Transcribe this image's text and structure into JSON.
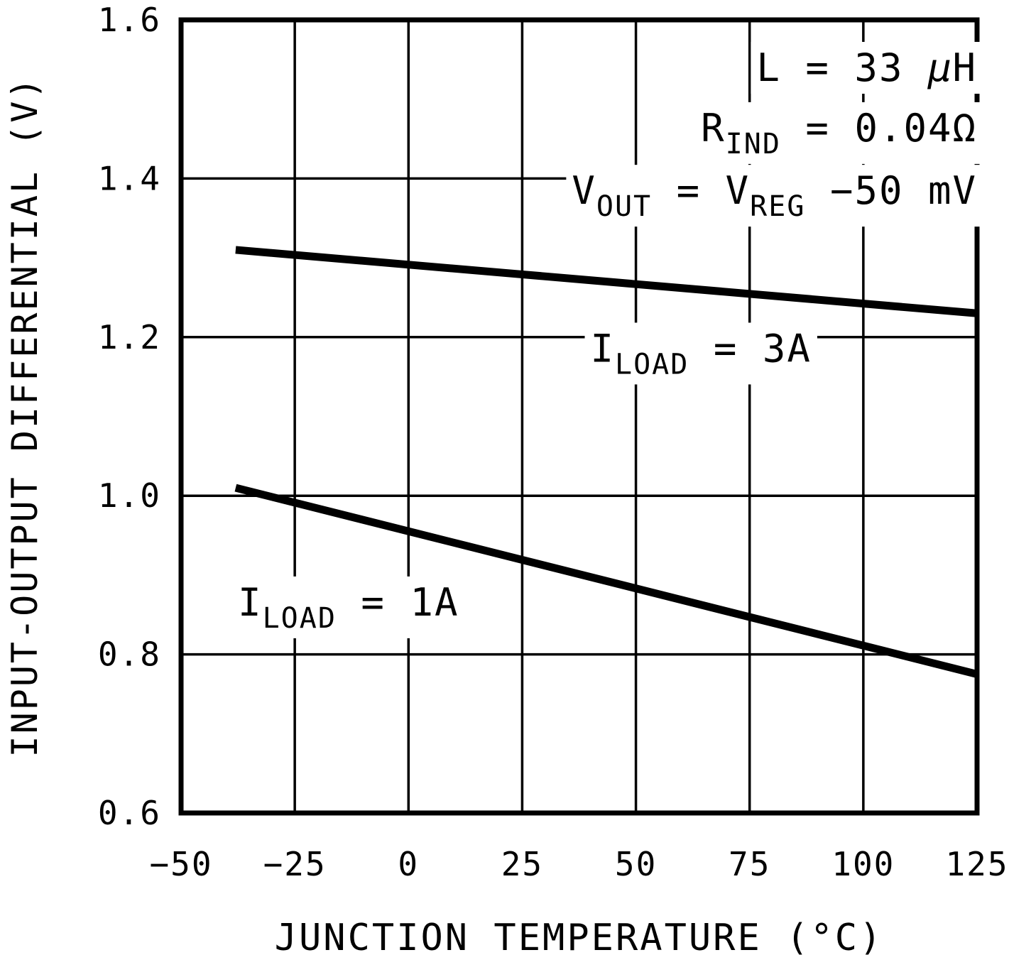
{
  "chart_data": {
    "type": "line",
    "title": "",
    "xlabel": "JUNCTION TEMPERATURE (°C)",
    "ylabel": "INPUT-OUTPUT DIFFERENTIAL (V)",
    "xlim": [
      -50,
      125
    ],
    "ylim": [
      0.6,
      1.6
    ],
    "x_ticks": [
      -50,
      -25,
      0,
      25,
      50,
      75,
      100,
      125
    ],
    "x_tick_labels": [
      "−50",
      "−25",
      "0",
      "25",
      "50",
      "75",
      "100",
      "125"
    ],
    "y_ticks": [
      0.6,
      0.8,
      1.0,
      1.2,
      1.4,
      1.6
    ],
    "y_tick_labels": [
      "0.6",
      "0.8",
      "1.0",
      "1.2",
      "1.4",
      "1.6"
    ],
    "grid": true,
    "legend": "none",
    "series": [
      {
        "id": "iload-3a",
        "name": "ILOAD = 3A",
        "x": [
          -38,
          125
        ],
        "y": [
          1.31,
          1.23
        ]
      },
      {
        "id": "iload-1a",
        "name": "ILOAD = 1A",
        "x": [
          -38,
          125
        ],
        "y": [
          1.01,
          0.775
        ]
      }
    ],
    "labels": [
      {
        "name": "annotation-inductance",
        "x": 125,
        "y": 1.54,
        "anchor": "end",
        "halo": true,
        "parts": [
          {
            "t": "L = 33 "
          },
          {
            "t": "µ",
            "italic": true
          },
          {
            "t": "H"
          }
        ]
      },
      {
        "name": "annotation-rind",
        "x": 125,
        "y": 1.464,
        "anchor": "end",
        "halo": true,
        "parts": [
          {
            "t": "R"
          },
          {
            "t": "IND",
            "sub": true
          },
          {
            "t": " = 0.04"
          },
          {
            "t": "Ω"
          }
        ]
      },
      {
        "name": "annotation-vout",
        "x": 125,
        "y": 1.385,
        "anchor": "end",
        "halo": true,
        "parts": [
          {
            "t": "V"
          },
          {
            "t": "OUT",
            "sub": true
          },
          {
            "t": " = V"
          },
          {
            "t": "REG",
            "sub": true
          },
          {
            "t": " −50 mV"
          }
        ]
      },
      {
        "name": "series-label-iload-3a",
        "x": 40,
        "y": 1.186,
        "anchor": "start",
        "halo": true,
        "parts": [
          {
            "t": "I"
          },
          {
            "t": "LOAD",
            "sub": true
          },
          {
            "t": " = 3A"
          }
        ]
      },
      {
        "name": "series-label-iload-1a",
        "x": -37.5,
        "y": 0.866,
        "anchor": "start",
        "halo": true,
        "parts": [
          {
            "t": "I"
          },
          {
            "t": "LOAD",
            "sub": true
          },
          {
            "t": " = 1A"
          }
        ]
      }
    ],
    "colors": {
      "line": "#000000",
      "grid": "#000000",
      "border": "#000000",
      "background": "#ffffff",
      "text": "#000000"
    }
  }
}
